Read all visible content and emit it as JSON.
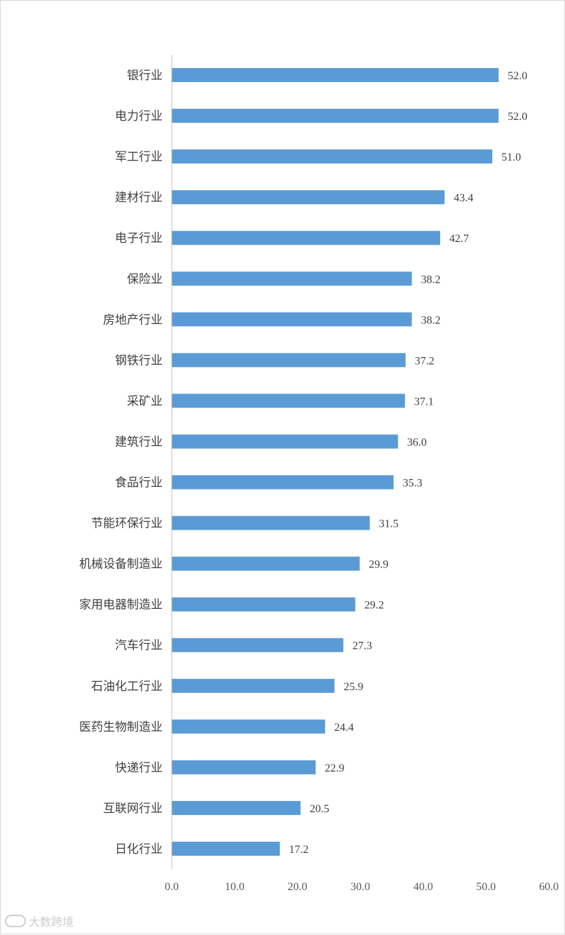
{
  "chart_data": {
    "type": "bar",
    "orientation": "horizontal",
    "categories": [
      "银行业",
      "电力行业",
      "军工行业",
      "建材行业",
      "电子行业",
      "保险业",
      "房地产行业",
      "钢铁行业",
      "采矿业",
      "建筑行业",
      "食品行业",
      "节能环保行业",
      "机械设备制造业",
      "家用电器制造业",
      "汽车行业",
      "石油化工行业",
      "医药生物制造业",
      "快递行业",
      "互联网行业",
      "日化行业"
    ],
    "values": [
      52.0,
      52.0,
      51.0,
      43.4,
      42.7,
      38.2,
      38.2,
      37.2,
      37.1,
      36.0,
      35.3,
      31.5,
      29.9,
      29.2,
      27.3,
      25.9,
      24.4,
      22.9,
      20.5,
      17.2
    ],
    "value_labels": [
      "52.0",
      "52.0",
      "51.0",
      "43.4",
      "42.7",
      "38.2",
      "38.2",
      "37.2",
      "37.1",
      "36.0",
      "35.3",
      "31.5",
      "29.9",
      "29.2",
      "27.3",
      "25.9",
      "24.4",
      "22.9",
      "20.5",
      "17.2"
    ],
    "xlim": [
      0,
      60
    ],
    "x_ticks": [
      "0.0",
      "10.0",
      "20.0",
      "30.0",
      "40.0",
      "50.0",
      "60.0"
    ],
    "title": "",
    "xlabel": "",
    "ylabel": "",
    "grid": false,
    "bar_color": "#5b9bd5",
    "axis_color": "#bfbfbf"
  },
  "watermark": {
    "text": "大数跨境"
  }
}
